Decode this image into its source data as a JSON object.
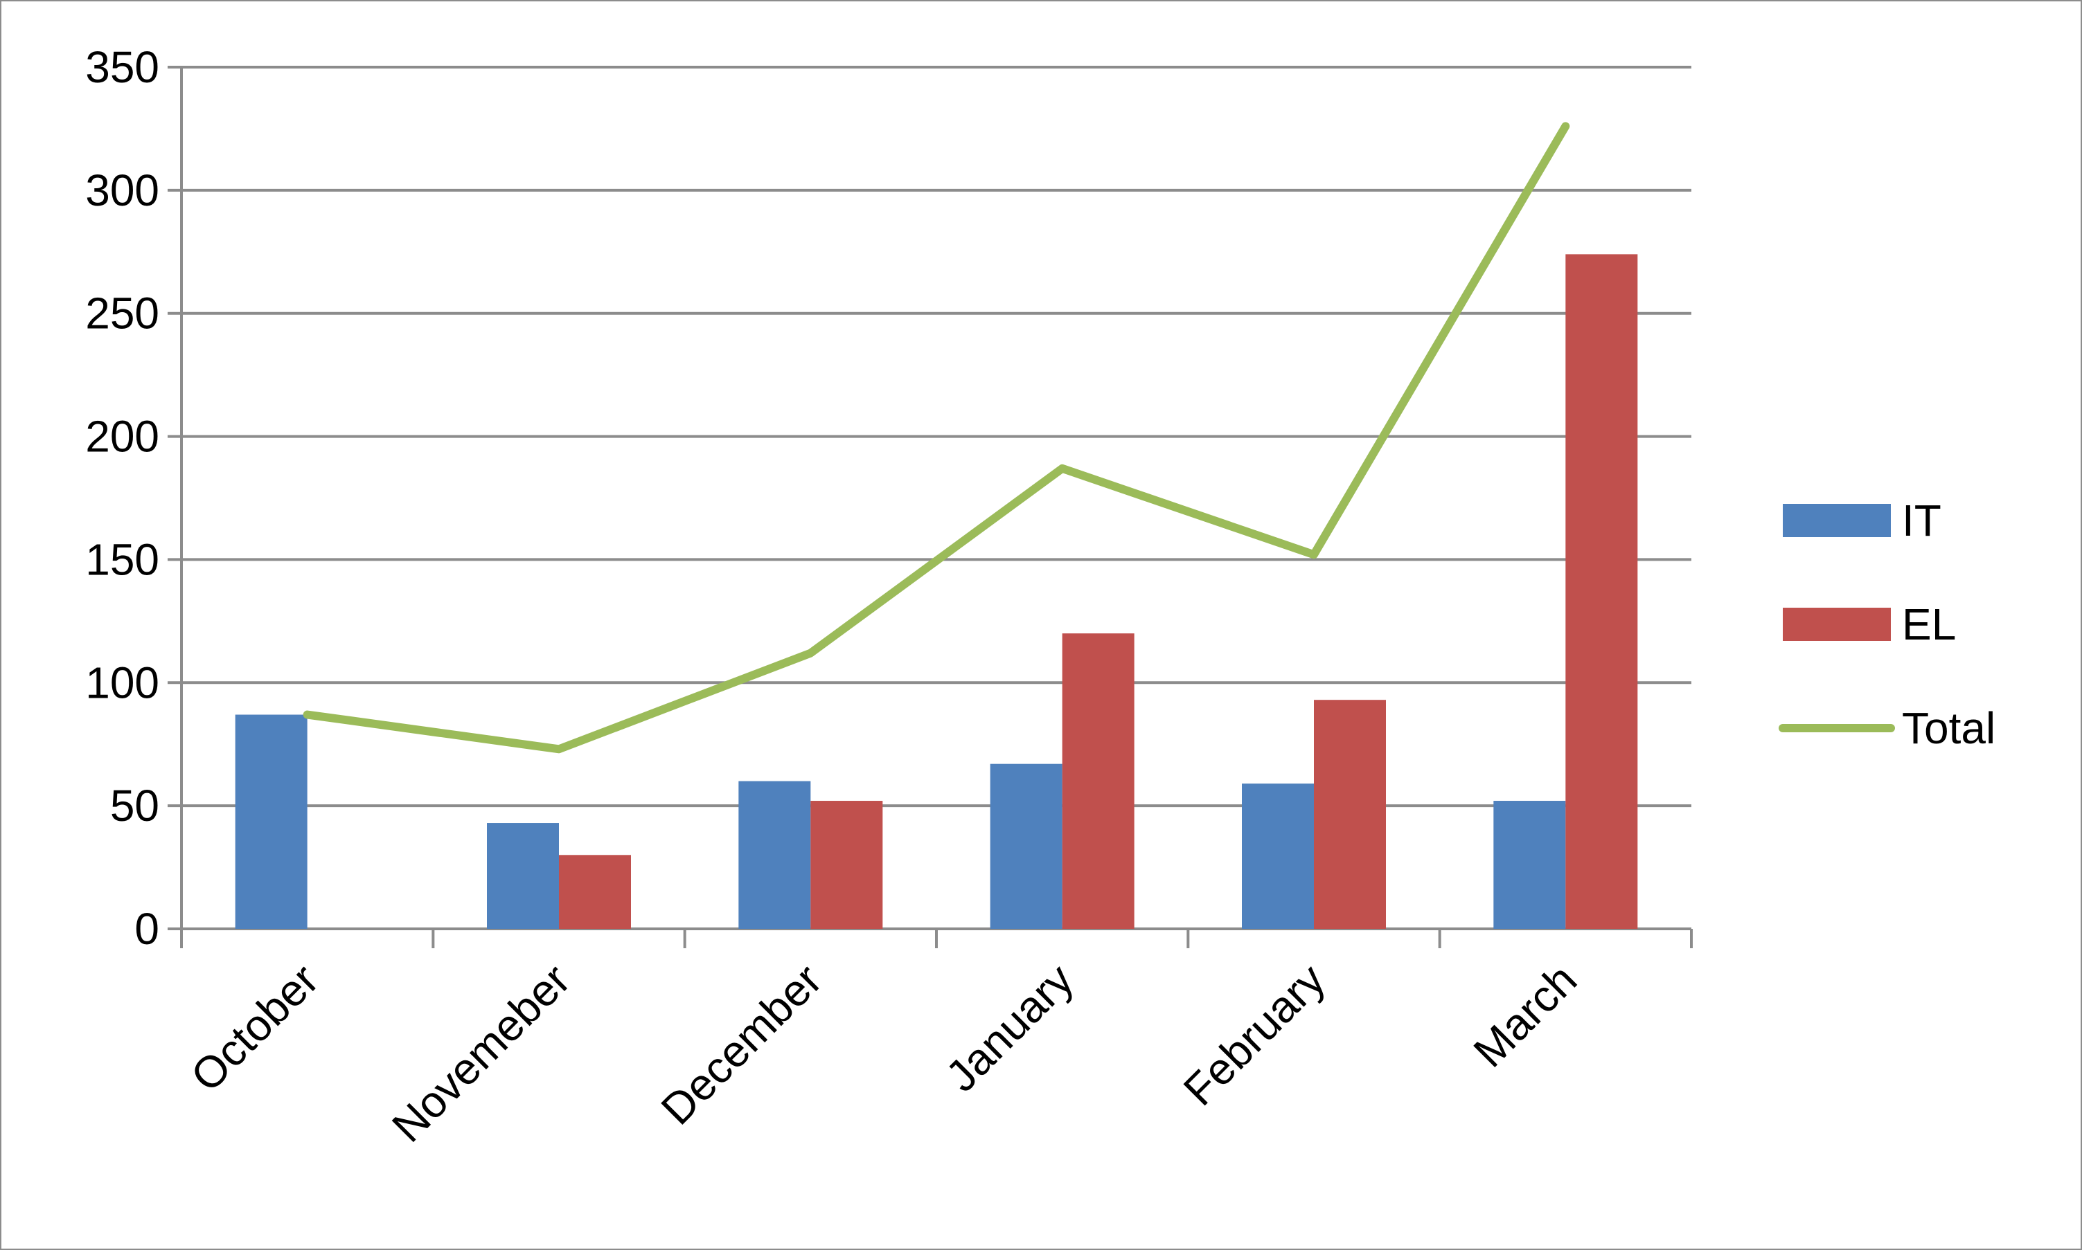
{
  "chart_data": {
    "type": "bar",
    "title": "",
    "xlabel": "",
    "ylabel": "",
    "categories": [
      "October",
      "Novemeber",
      "December",
      "January",
      "February",
      "March"
    ],
    "ylim": [
      0,
      350
    ],
    "yticks": [
      0,
      50,
      100,
      150,
      200,
      250,
      300,
      350
    ],
    "grid": true,
    "legend_position": "right",
    "series": [
      {
        "name": "IT",
        "type": "bar",
        "color": "#4f81bd",
        "values": [
          87,
          43,
          60,
          67,
          59,
          52
        ]
      },
      {
        "name": "EL",
        "type": "bar",
        "color": "#c0504d",
        "values": [
          0,
          30,
          52,
          120,
          93,
          274
        ]
      },
      {
        "name": "Total",
        "type": "line",
        "color": "#9bbb59",
        "values": [
          87,
          73,
          112,
          187,
          152,
          326
        ]
      }
    ]
  }
}
